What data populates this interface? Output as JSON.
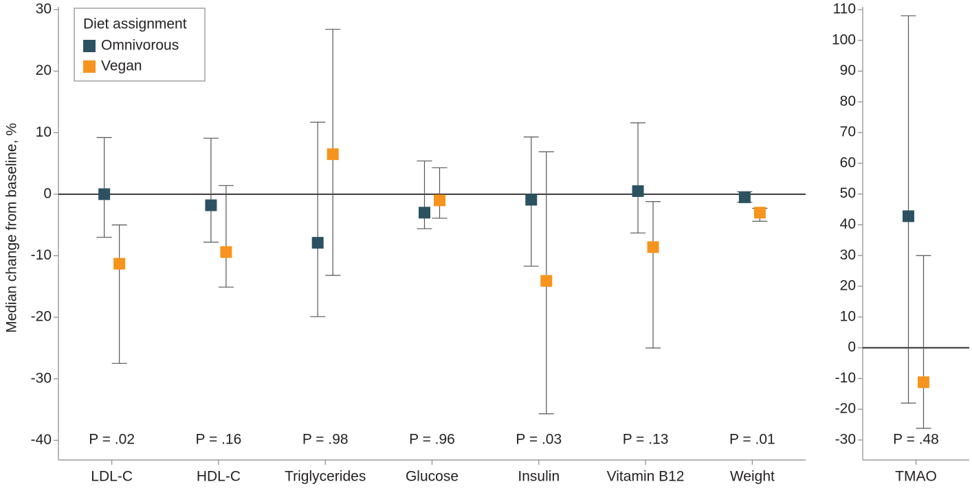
{
  "chart_data": [
    {
      "type": "point",
      "y_label": "Median change from baseline, %",
      "legend_title": "Diet assignment",
      "categories": [
        "LDL-C",
        "HDL-C",
        "Triglycerides",
        "Glucose",
        "Insulin",
        "Vitamin B12",
        "Weight"
      ],
      "p_labels": [
        "P = .02",
        "P = .16",
        "P = .98",
        "P = .96",
        "P = .03",
        "P = .13",
        "P = .01"
      ],
      "series": [
        {
          "name": "Omnivorous",
          "color": "#2c5262",
          "values": [
            0,
            -1.8,
            -7.9,
            -3,
            -0.9,
            0.5,
            -0.5
          ],
          "lower": [
            -7,
            -7.8,
            -19.9,
            -5.6,
            -11.7,
            -6.3,
            -1.3
          ],
          "upper": [
            9.2,
            9.1,
            11.7,
            5.4,
            9.3,
            11.6,
            0.4
          ]
        },
        {
          "name": "Vegan",
          "color": "#f7941d",
          "values": [
            -11.3,
            -9.4,
            6.5,
            -1,
            -14.1,
            -8.6,
            -3
          ],
          "lower": [
            -27.5,
            -15.1,
            -13.2,
            -3.9,
            -35.7,
            -25,
            -4.4
          ],
          "upper": [
            -5,
            1.4,
            26.8,
            4.3,
            6.9,
            -1.2,
            -2.3
          ]
        }
      ],
      "ylim": [
        -43.2,
        30
      ],
      "yticks": [
        -40,
        -30,
        -20,
        -10,
        0,
        10,
        20,
        30
      ]
    },
    {
      "type": "point",
      "categories": [
        "TMAO"
      ],
      "p_labels": [
        "P = .48"
      ],
      "series": [
        {
          "color": "#2c5262",
          "values": [
            42.8
          ],
          "lower": [
            -18
          ],
          "upper": [
            108
          ]
        },
        {
          "color": "#f7941d",
          "values": [
            -11.2
          ],
          "lower": [
            -26.2
          ],
          "upper": [
            30
          ]
        }
      ],
      "ylim": [
        -36.5,
        110
      ],
      "yticks": [
        -30,
        -20,
        -10,
        0,
        10,
        20,
        30,
        40,
        50,
        60,
        70,
        80,
        90,
        100,
        110
      ]
    }
  ]
}
